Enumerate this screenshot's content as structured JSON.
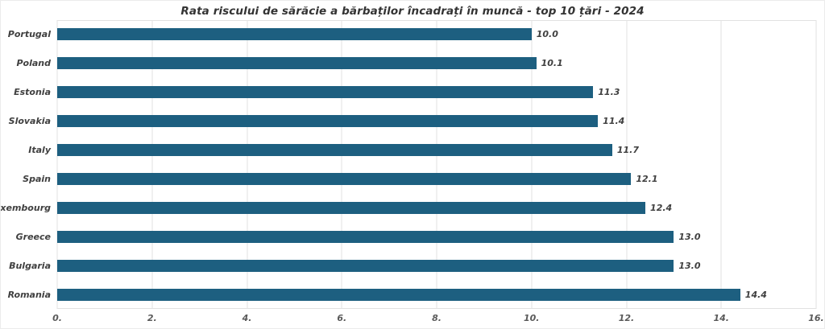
{
  "chart_data": {
    "type": "bar",
    "orientation": "horizontal",
    "title": "Rata riscului de sărăcie a bărbaților încadrați în muncă - top 10 țări - 2024",
    "categories": [
      "Portugal",
      "Poland",
      "Estonia",
      "Slovakia",
      "Italy",
      "Spain",
      "Luxembourg",
      "Greece",
      "Bulgaria",
      "Romania"
    ],
    "values": [
      10.0,
      10.1,
      11.3,
      11.4,
      11.7,
      12.1,
      12.4,
      13.0,
      13.0,
      14.4
    ],
    "value_labels": [
      "10.0",
      "10.1",
      "11.3",
      "11.4",
      "11.7",
      "12.1",
      "12.4",
      "13.0",
      "13.0",
      "14.4"
    ],
    "xlabel": "",
    "ylabel": "",
    "xlim": [
      0,
      16
    ],
    "x_tick_labels": [
      "0.",
      "2.",
      "4.",
      "6.",
      "8.",
      "10.",
      "12.",
      "14.",
      "16."
    ],
    "grid": "vertical",
    "legend": "none"
  },
  "colors": {
    "bar": "#1d5f80",
    "title_text": "#333333",
    "label_text": "#404040",
    "tick_text": "#595959",
    "gridline": "#e2e2e2",
    "chart_border": "#ececec"
  }
}
